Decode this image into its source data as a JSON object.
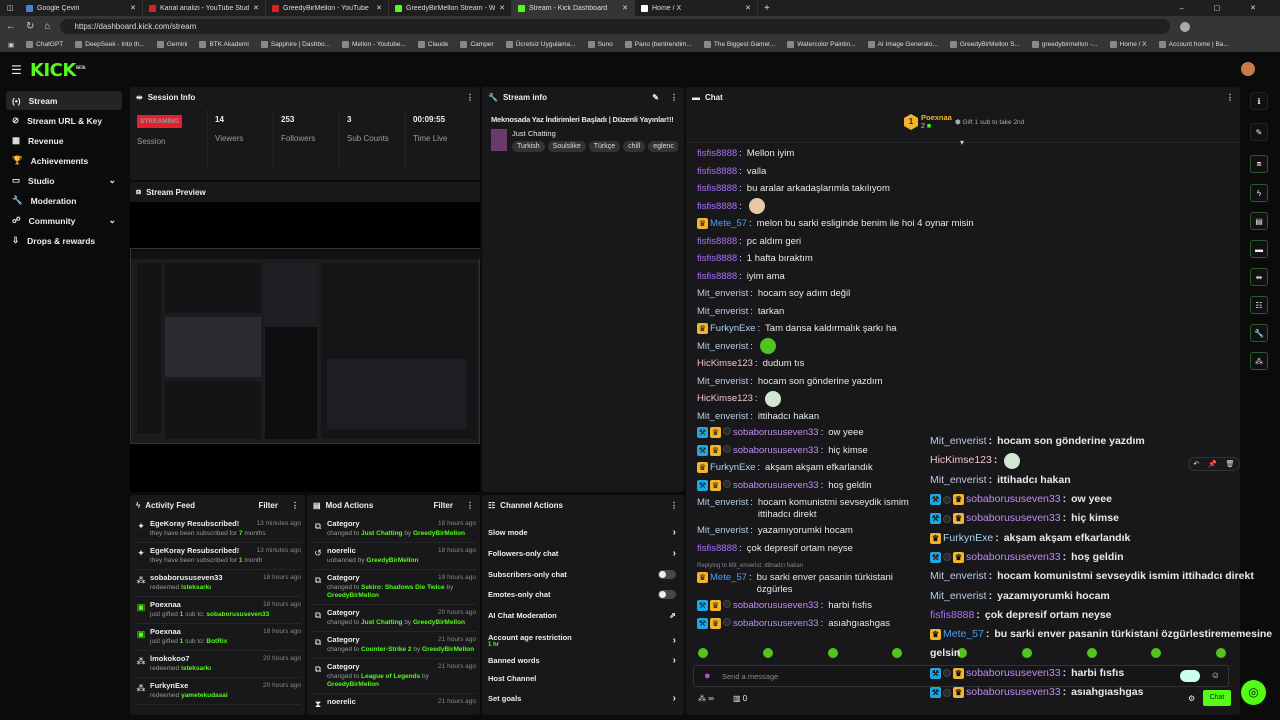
{
  "browser": {
    "tabs": [
      {
        "title": "Google Çeviri",
        "color": "#4a7fd8"
      },
      {
        "title": "Kanal analizi - YouTube Studio",
        "color": "#e02020"
      },
      {
        "title": "GreedyBirMellon - YouTube",
        "color": "#e02020"
      },
      {
        "title": "GreedyBirMellon Stream - Watch Live",
        "color": "#53fc18"
      },
      {
        "title": "Stream - Kick Dashboard",
        "color": "#53fc18",
        "active": true
      },
      {
        "title": "Home / X",
        "color": "#ffffff"
      }
    ],
    "url": "https://dashboard.kick.com/stream",
    "bookmarks": [
      "ChatGPT",
      "DeepSeek - Into th...",
      "Gemini",
      "BTK Akademi",
      "Sapphire | Dashbo...",
      "Mellon - Youtube...",
      "Claude",
      "Camper",
      "Ücretsiz Uygulama...",
      "Suno",
      "Pano (bentrendim...",
      "The Biggest Gamer...",
      "Watercolor Paintin...",
      "AI Image Generato...",
      "GreedyBirMellon S...",
      "greedybirmellon -...",
      "Home / X",
      "Account home | Ba..."
    ]
  },
  "app": {
    "logo": "KICK",
    "logo_sup": "BETA",
    "accent": "#53fc18"
  },
  "sidebar": {
    "items": [
      {
        "label": "Stream",
        "icon": "broadcast-icon",
        "active": true
      },
      {
        "label": "Stream URL & Key",
        "icon": "link-icon"
      },
      {
        "label": "Revenue",
        "icon": "chart-icon"
      },
      {
        "label": "Achievements",
        "icon": "trophy-icon"
      },
      {
        "label": "Studio",
        "icon": "studio-icon",
        "expandable": true
      },
      {
        "label": "Moderation",
        "icon": "wrench-icon"
      },
      {
        "label": "Community",
        "icon": "people-icon",
        "expandable": true
      },
      {
        "label": "Drops & rewards",
        "icon": "drops-icon"
      }
    ]
  },
  "session": {
    "title": "Session Info",
    "status": "STREAMING",
    "status_label": "Session",
    "stats": [
      {
        "value": "14",
        "label": "Viewers"
      },
      {
        "value": "253",
        "label": "Followers"
      },
      {
        "value": "3",
        "label": "Sub Counts"
      },
      {
        "value": "00:09:55",
        "label": "Time Live"
      }
    ]
  },
  "preview": {
    "title": "Stream Preview"
  },
  "stream_info": {
    "title": "Stream info",
    "stream_title": "Meknosada Yaz İndirimleri Başladı | Düzenli Yayınlar!!!",
    "category": "Just Chatting",
    "tags": [
      "Turkish",
      "Soulslike",
      "Türkçe",
      "chill",
      "eglenc"
    ]
  },
  "activity": {
    "title": "Activity Feed",
    "filter": "Filter",
    "items": [
      {
        "icon": "sparkle-icon",
        "name": "EgeKoray Resubscribed!",
        "pre": "they have been subscribed for ",
        "hl": "7",
        "post": " months",
        "time": "13 minutes ago"
      },
      {
        "icon": "sparkle-icon",
        "name": "EgeKoray Resubscribed!",
        "pre": "they have been subscribed for ",
        "hl": "1",
        "post": " month",
        "time": "13 minutes ago"
      },
      {
        "icon": "points-icon",
        "name": "sobaborususeven33",
        "pre": "redeemed ",
        "hl": "isteksarkı",
        "post": "",
        "time": "18 hours ago"
      },
      {
        "icon": "gift-icon",
        "name": "Poexnaa",
        "pre": "just gifted ",
        "hl": "1",
        "post": " sub to: ",
        "hl2": "sobaborususeven33",
        "time": "18 hours ago"
      },
      {
        "icon": "gift-icon",
        "name": "Poexnaa",
        "pre": "just gifted ",
        "hl": "1",
        "post": " sub to: ",
        "hl2": "BotRix",
        "time": "18 hours ago"
      },
      {
        "icon": "points-icon",
        "name": "lmokokoo7",
        "pre": "redeemed ",
        "hl": "isteksarkı",
        "post": "",
        "time": "20 hours ago"
      },
      {
        "icon": "points-icon",
        "name": "FurkynExe",
        "pre": "redeemed ",
        "hl": "yametekudasai",
        "post": "",
        "time": "20 hours ago"
      }
    ]
  },
  "mod_actions": {
    "title": "Mod Actions",
    "filter": "Filter",
    "items": [
      {
        "icon": "category-icon",
        "name": "Category",
        "pre": "changed to ",
        "hl": "Just Chatting",
        "post": " by ",
        "hl2": "GreedyBirMellon",
        "time": "18 hours ago"
      },
      {
        "icon": "unban-icon",
        "name": "noerelic",
        "pre": "unbanned by ",
        "hl": "GreedyBirMellon",
        "post": "",
        "time": "18 hours ago"
      },
      {
        "icon": "category-icon",
        "name": "Category",
        "pre": "changed to ",
        "hl": "Sekiro: Shadows Die Twice",
        "post": " by ",
        "hl2": "GreedyBirMellon",
        "time": "19 hours ago",
        "tall": true
      },
      {
        "icon": "category-icon",
        "name": "Category",
        "pre": "changed to ",
        "hl": "Just Chatting",
        "post": " by ",
        "hl2": "GreedyBirMellon",
        "time": "20 hours ago"
      },
      {
        "icon": "category-icon",
        "name": "Category",
        "pre": "changed to ",
        "hl": "Counter-Strike 2",
        "post": " by ",
        "hl2": "GreedyBirMellon",
        "time": "21 hours ago"
      },
      {
        "icon": "category-icon",
        "name": "Category",
        "pre": "changed to ",
        "hl": "League of Legends",
        "post": " by ",
        "hl2": "GreedyBirMellon",
        "time": "21 hours ago",
        "tall": true
      },
      {
        "icon": "hourglass-icon",
        "name": "noerelic",
        "pre": "",
        "hl": "",
        "post": "",
        "time": "21 hours ago"
      }
    ]
  },
  "channel_actions": {
    "title": "Channel Actions",
    "items": [
      {
        "label": "Slow mode",
        "control": "chevron"
      },
      {
        "label": "Followers-only chat",
        "control": "chevron"
      },
      {
        "label": "Subscribers-only chat",
        "control": "toggle",
        "on": false
      },
      {
        "label": "Emotes-only chat",
        "control": "toggle",
        "on": false
      },
      {
        "label": "AI Chat Moderation",
        "control": "external"
      },
      {
        "label": "Account age restriction",
        "sub": "1 hr",
        "control": "chevron"
      },
      {
        "label": "Banned words",
        "control": "chevron"
      },
      {
        "label": "Host Channel",
        "control": "none"
      },
      {
        "label": "Set goals",
        "control": "chevron"
      }
    ]
  },
  "chat": {
    "title": "Chat",
    "leader": {
      "rank": "1",
      "name": "Poexnaa",
      "count": "2",
      "gift_text": "Gift 1 sub to take 2nd"
    },
    "reply_text": "Replying to Mit_enverist: ittihadcı hakan",
    "input_placeholder": "Send a message",
    "points": "∞",
    "gifts": "0",
    "send": "Chat",
    "user_colors": {
      "fisfis8888": "#a970ff",
      "Mete_57": "#4d9ff0",
      "Mit_enverist": "#b8cbe6",
      "FurkynExe": "#a8d2f0",
      "HicKimse123": "#f2c3d3",
      "sobaborususeven33": "#c08cf0"
    },
    "messages": [
      {
        "u": "fisfis8888",
        "t": "Mellon iyim"
      },
      {
        "u": "fisfis8888",
        "t": "valla"
      },
      {
        "u": "fisfis8888",
        "t": "bu aralar arkadaşlarımla takılıyom"
      },
      {
        "u": "fisfis8888",
        "t": "",
        "emote": "#e8c8a8"
      },
      {
        "u": "Mete_57",
        "b": [
          "sub"
        ],
        "t": "melon bu sarki esliginde benim ile hoi 4 oynar misin"
      },
      {
        "u": "fisfis8888",
        "t": "pc aldım geri"
      },
      {
        "u": "fisfis8888",
        "t": "1 hafta bıraktım"
      },
      {
        "u": "fisfis8888",
        "t": "iyim ama"
      },
      {
        "u": "Mit_enverist",
        "t": "hocam soy adım değil"
      },
      {
        "u": "Mit_enverist",
        "t": "tarkan"
      },
      {
        "u": "FurkynExe",
        "b": [
          "sub"
        ],
        "t": "Tam dansa kaldırmalık şarkı ha"
      },
      {
        "u": "Mit_enverist",
        "t": "",
        "emote": "#53c41e"
      },
      {
        "u": "HicKimse123",
        "t": "dudum tıs"
      },
      {
        "u": "Mit_enverist",
        "t": "hocam son gönderine yazdım"
      },
      {
        "u": "HicKimse123",
        "t": "",
        "emote": "#cfe8cf"
      },
      {
        "u": "Mit_enverist",
        "t": "ittihadcı hakan"
      },
      {
        "u": "sobaborususeven33",
        "b": [
          "mod",
          "sub",
          "dot"
        ],
        "t": "ow yeee"
      },
      {
        "u": "sobaborususeven33",
        "b": [
          "mod",
          "sub",
          "dot"
        ],
        "t": "hiç kimse"
      },
      {
        "u": "FurkynExe",
        "b": [
          "sub"
        ],
        "t": "akşam akşam efkarlandık"
      },
      {
        "u": "sobaborususeven33",
        "b": [
          "mod",
          "sub",
          "dot"
        ],
        "t": "hoş geldin"
      },
      {
        "u": "Mit_enverist",
        "t": "hocam komunistmi sevseydik ismim ittihadcı direkt"
      },
      {
        "u": "Mit_enverist",
        "t": "yazamıyorumki hocam"
      },
      {
        "u": "fisfis8888",
        "t": "çok depresif ortam neyse"
      },
      {
        "reply": true
      },
      {
        "u": "Mete_57",
        "b": [
          "sub"
        ],
        "t": "bu sarki enver pasanin türkistani özgürles"
      },
      {
        "u": "sobaborususeven33",
        "b": [
          "mod",
          "sub",
          "dot"
        ],
        "t": "harbi fısfıs"
      },
      {
        "u": "sobaborususeven33",
        "b": [
          "mod",
          "sub",
          "dot"
        ],
        "t": "asıahgıashgas"
      }
    ],
    "overlay": [
      {
        "u": "Mit_enverist",
        "t": "hocam son gönderine yazdım"
      },
      {
        "u": "HicKimse123",
        "t": "",
        "emote": "#cfe8cf"
      },
      {
        "u": "Mit_enverist",
        "t": "ittihadcı hakan"
      },
      {
        "u": "sobaborususeven33",
        "b": [
          "mod",
          "dot",
          "sub"
        ],
        "t": "ow yeee"
      },
      {
        "u": "sobaborususeven33",
        "b": [
          "mod",
          "dot",
          "sub"
        ],
        "t": "hiç kimse"
      },
      {
        "u": "FurkynExe",
        "b": [
          "sub"
        ],
        "t": "akşam akşam efkarlandık"
      },
      {
        "u": "sobaborususeven33",
        "b": [
          "mod",
          "dot",
          "sub"
        ],
        "t": "hoş geldin"
      },
      {
        "u": "Mit_enverist",
        "t": "hocam komunistmi sevseydik ismim ittihadcı direkt"
      },
      {
        "u": "Mit_enverist",
        "t": "yazamıyorumki hocam"
      },
      {
        "u": "fisfis8888",
        "t": "çok depresif ortam neyse"
      },
      {
        "u": "Mete_57",
        "b": [
          "sub"
        ],
        "t": "bu sarki enver pasanin türkistani özgürlestirememesine"
      },
      {
        "u": "",
        "t": "gelsin"
      },
      {
        "u": "sobaborususeven33",
        "b": [
          "mod",
          "dot",
          "sub"
        ],
        "t": "harbi fısfıs"
      },
      {
        "u": "sobaborususeven33",
        "b": [
          "mod",
          "dot",
          "sub"
        ],
        "t": "asıahgıashgas"
      }
    ]
  },
  "rail": {
    "icons": [
      "info-icon",
      "edit-icon",
      "preview-icon",
      "activity-icon",
      "mod-actions-icon",
      "chat-icon",
      "channel-actions-icon",
      "stream-info-icon",
      "wrench-icon",
      "points-icon"
    ]
  }
}
